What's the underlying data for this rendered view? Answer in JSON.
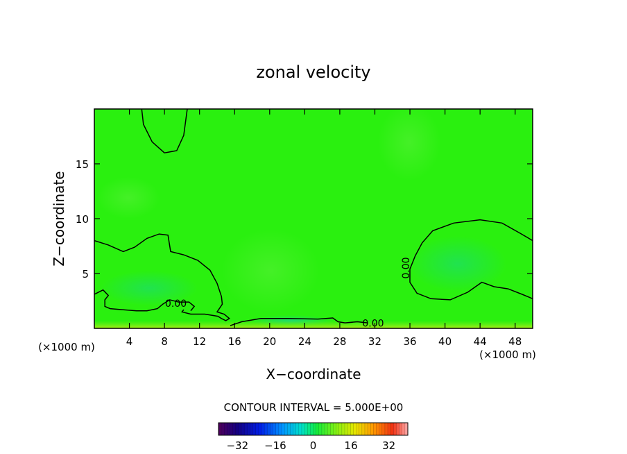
{
  "chart_data": {
    "type": "heatmap",
    "title": "zonal velocity",
    "xlabel": "X−coordinate",
    "ylabel": "Z−coordinate",
    "x_unit_left": "(×1000 m)",
    "x_unit_right": "(×1000 m)",
    "xlim": [
      0,
      50
    ],
    "ylim": [
      0,
      20
    ],
    "x_ticks": [
      4,
      8,
      12,
      16,
      20,
      24,
      28,
      32,
      36,
      40,
      44,
      48
    ],
    "x_tick_labels": [
      "4",
      "8",
      "12",
      "16",
      "20",
      "24",
      "28",
      "32",
      "36",
      "40",
      "44",
      "48"
    ],
    "y_ticks": [
      5,
      10,
      15
    ],
    "y_tick_labels": [
      "5",
      "10",
      "15"
    ],
    "contour_interval_text": "CONTOUR INTERVAL = 5.000E+00",
    "contour_labels": [
      {
        "text": "0.00",
        "x": 9.3,
        "z": 2.2
      },
      {
        "text": "0.00",
        "x": 31.8,
        "z": 0.4
      },
      {
        "text": "0.00",
        "x": 35.6,
        "z": 5.5,
        "rotate": -90
      }
    ],
    "zero_contours": [
      [
        [
          5.4,
          20
        ],
        [
          5.6,
          18.6
        ],
        [
          6.6,
          17.0
        ],
        [
          8.0,
          16.0
        ],
        [
          9.4,
          16.2
        ],
        [
          10.2,
          17.6
        ],
        [
          10.6,
          20
        ]
      ],
      [
        [
          0,
          8.0
        ],
        [
          1.6,
          7.6
        ],
        [
          3.3,
          7.0
        ],
        [
          4.6,
          7.4
        ],
        [
          6.0,
          8.2
        ],
        [
          7.4,
          8.6
        ],
        [
          8.4,
          8.5
        ],
        [
          8.7,
          7.0
        ],
        [
          10.2,
          6.7
        ],
        [
          11.8,
          6.2
        ],
        [
          13.2,
          5.3
        ],
        [
          14.0,
          4.1
        ],
        [
          14.5,
          2.9
        ],
        [
          14.6,
          2.2
        ],
        [
          14.0,
          1.5
        ],
        [
          14.8,
          1.3
        ],
        [
          15.4,
          0.9
        ],
        [
          15.0,
          0.7
        ],
        [
          14.5,
          0.9
        ],
        [
          14.1,
          1.1
        ],
        [
          12.6,
          1.3
        ],
        [
          11.0,
          1.3
        ],
        [
          10.0,
          1.5
        ],
        [
          10.2,
          1.7
        ]
      ],
      [
        [
          0,
          3.1
        ],
        [
          1.0,
          3.5
        ],
        [
          1.6,
          3.0
        ],
        [
          1.2,
          2.6
        ],
        [
          1.2,
          2.0
        ],
        [
          1.8,
          1.8
        ],
        [
          3.2,
          1.7
        ],
        [
          4.8,
          1.6
        ],
        [
          6.0,
          1.6
        ],
        [
          7.2,
          1.8
        ],
        [
          7.8,
          2.2
        ],
        [
          8.6,
          2.6
        ],
        [
          9.6,
          2.4
        ],
        [
          10.8,
          2.4
        ],
        [
          11.4,
          2.0
        ],
        [
          11.0,
          1.6
        ]
      ],
      [
        [
          15.5,
          0.25
        ],
        [
          16.8,
          0.6
        ],
        [
          19.0,
          0.9
        ],
        [
          22.0,
          0.9
        ],
        [
          25.5,
          0.85
        ],
        [
          27.2,
          0.95
        ],
        [
          27.8,
          0.6
        ],
        [
          28.6,
          0.5
        ],
        [
          30.0,
          0.6
        ],
        [
          31.2,
          0.5
        ]
      ],
      [
        [
          50,
          8.0
        ],
        [
          48.5,
          8.7
        ],
        [
          46.5,
          9.6
        ],
        [
          44.0,
          9.9
        ],
        [
          41.0,
          9.6
        ],
        [
          38.6,
          8.9
        ],
        [
          37.4,
          7.8
        ],
        [
          36.6,
          6.6
        ],
        [
          36.0,
          5.4
        ],
        [
          36.0,
          4.2
        ],
        [
          36.8,
          3.2
        ],
        [
          38.4,
          2.7
        ],
        [
          40.6,
          2.6
        ],
        [
          42.6,
          3.3
        ],
        [
          44.2,
          4.2
        ],
        [
          45.6,
          3.8
        ],
        [
          47.2,
          3.6
        ],
        [
          48.8,
          3.1
        ],
        [
          50,
          2.7
        ]
      ]
    ],
    "colorbar": {
      "min": -40,
      "max": 40,
      "ticks": [
        -32,
        -16,
        0,
        16,
        32
      ],
      "tick_labels": [
        "−32",
        "−16",
        "0",
        "16",
        "32"
      ]
    },
    "colors": {
      "field": "#2af00f",
      "field_light": "#40ef22",
      "field_dark": "#20e34a",
      "bottom_band": "#a4ee18",
      "contour": "#000000"
    },
    "grid": false
  }
}
